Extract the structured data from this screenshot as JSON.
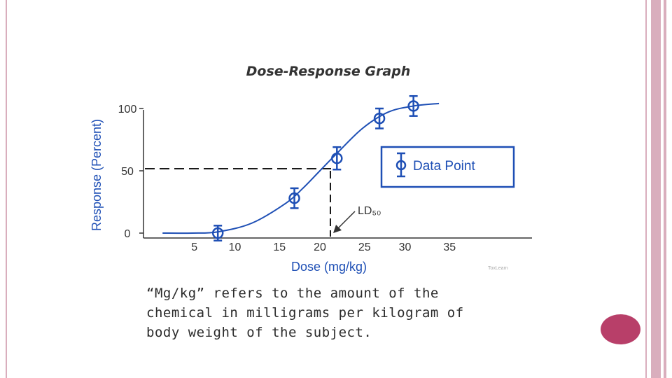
{
  "chart_data": {
    "type": "scatter",
    "title": "Dose-Response Graph",
    "xlabel": "Dose (mg/kg)",
    "ylabel": "Response (Percent)",
    "x_ticks": [
      "5",
      "10",
      "15",
      "20",
      "25",
      "30",
      "35"
    ],
    "y_ticks": [
      "0",
      "50",
      "100"
    ],
    "xlim": [
      0,
      40
    ],
    "ylim": [
      0,
      100
    ],
    "series": [
      {
        "name": "Data Point",
        "points": [
          {
            "x": 8,
            "y": 0,
            "err": 6
          },
          {
            "x": 17,
            "y": 28,
            "err": 8
          },
          {
            "x": 22,
            "y": 60,
            "err": 9
          },
          {
            "x": 27,
            "y": 92,
            "err": 8
          },
          {
            "x": 31,
            "y": 102,
            "err": 8
          }
        ]
      }
    ],
    "curve": [
      [
        1.5,
        0
      ],
      [
        5,
        0
      ],
      [
        8,
        1
      ],
      [
        12,
        8
      ],
      [
        16,
        24
      ],
      [
        18,
        36
      ],
      [
        20,
        50
      ],
      [
        22,
        64
      ],
      [
        25,
        84
      ],
      [
        28,
        97
      ],
      [
        31,
        102
      ],
      [
        34,
        104
      ]
    ],
    "ld50": {
      "x": 20,
      "y": 50,
      "label": "LD₅₀"
    },
    "legend": {
      "label": "Data Point",
      "position": "right"
    },
    "credit": "ToxLearn",
    "grid": false
  },
  "note": {
    "lines": [
      "“Mg/kg” refers to the amount of the",
      "chemical in milligrams per kilogram of",
      "body weight of the subject."
    ]
  },
  "colors": {
    "series": "#1e4fb5",
    "axis_text": "#333333",
    "frame": "#d9aebd",
    "button": "#b83f69"
  }
}
